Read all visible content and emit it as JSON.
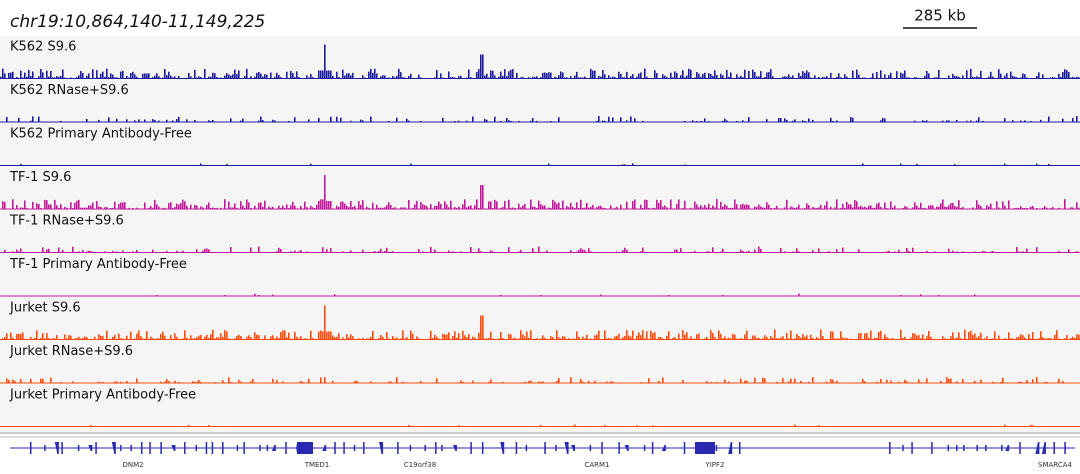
{
  "locus": "chr19:10,864,140-11,149,225",
  "scale": "285 kb",
  "tracks": [
    {
      "name": "K562 S9.6",
      "color": "#1c1ca0"
    },
    {
      "name": "K562 RNase+S9.6",
      "color": "#1c1ca0"
    },
    {
      "name": "K562 Primary Antibody-Free",
      "color": "#1c1ca0"
    },
    {
      "name": "TF-1 S9.6",
      "color": "#c4189c"
    },
    {
      "name": "TF-1 RNase+S9.6",
      "color": "#c4189c"
    },
    {
      "name": "TF-1 Primary Antibody-Free",
      "color": "#c4189c"
    },
    {
      "name": "Jurket S9.6",
      "color": "#ff4a0c"
    },
    {
      "name": "Jurket RNase+S9.6",
      "color": "#ff4a0c"
    },
    {
      "name": "Jurket Primary Antibody-Free",
      "color": "#ff4a0c"
    }
  ],
  "genes": [
    "DNM2",
    "TMED1",
    "C19orf38",
    "CARM1",
    "YIPF2",
    "SMARCA4"
  ]
}
